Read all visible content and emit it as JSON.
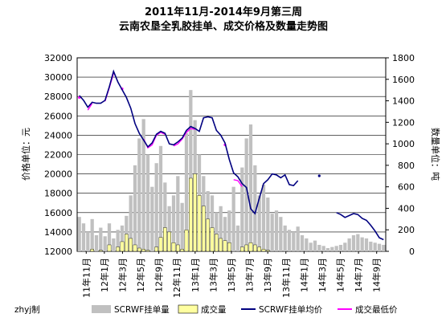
{
  "chart_data": {
    "type": "line",
    "title": "2011年11月-2014年9月第三周",
    "subtitle": "云南农垦全乳胶挂单、成交价格及数量走势图",
    "ylabel": "价格单位：元",
    "y2label": "数量单位：吨",
    "ylim": [
      12000,
      32000
    ],
    "y2lim": [
      0,
      1800
    ],
    "yticks": [
      "12000",
      "14000",
      "16000",
      "18000",
      "20000",
      "22000",
      "24000",
      "26000",
      "28000",
      "30000",
      "32000"
    ],
    "y2ticks": [
      "0",
      "200",
      "400",
      "600",
      "800",
      "1000",
      "1200",
      "1400",
      "1600",
      "1800"
    ],
    "x_tick_labels": [
      "11年11月",
      "12年1月",
      "12年3月",
      "12年5月",
      "12年9月",
      "12年11月",
      "13年1月",
      "13年3月",
      "13年5月",
      "13年7月",
      "13年9月",
      "13年11月",
      "14年1月",
      "14年3月",
      "14年5月",
      "14年7月",
      "14年9月"
    ],
    "grid": true,
    "legend_position": "bottom",
    "footer_note": "zhyj制",
    "series": [
      {
        "name": "SCRWF挂单量",
        "axis": "right",
        "kind": "bar",
        "color": "#c0c0c0",
        "values": [
          320,
          260,
          180,
          300,
          150,
          220,
          140,
          260,
          120,
          200,
          240,
          330,
          520,
          800,
          1050,
          1230,
          900,
          600,
          820,
          980,
          640,
          420,
          520,
          700,
          450,
          1100,
          1500,
          1220,
          900,
          700,
          560,
          520,
          360,
          420,
          320,
          380,
          600,
          240,
          780,
          1050,
          1180,
          800,
          520,
          620,
          500,
          350,
          380,
          320,
          240,
          200,
          180,
          230,
          150,
          120,
          80,
          100,
          60,
          50,
          30,
          40,
          50,
          60,
          80,
          120,
          150,
          160,
          130,
          120,
          90,
          80,
          70,
          60
        ]
      },
      {
        "name": "成交量",
        "axis": "right",
        "kind": "bar",
        "color": "#ffffa0",
        "values": [
          0,
          0,
          0,
          20,
          0,
          10,
          0,
          60,
          0,
          40,
          90,
          160,
          120,
          60,
          30,
          20,
          10,
          0,
          40,
          130,
          220,
          180,
          80,
          60,
          20,
          200,
          680,
          720,
          520,
          420,
          300,
          220,
          160,
          120,
          100,
          80,
          0,
          0,
          40,
          60,
          80,
          60,
          40,
          20,
          10,
          0,
          0,
          0,
          0,
          0,
          0,
          0,
          0,
          0,
          0,
          0,
          0,
          0,
          0,
          0,
          0,
          0,
          0,
          0,
          0,
          0,
          0,
          0,
          0,
          0,
          0,
          0
        ]
      },
      {
        "name": "SCRWF挂单均价",
        "axis": "left",
        "kind": "line",
        "color": "#000080",
        "values": [
          28100,
          27600,
          26900,
          27400,
          27300,
          27300,
          27600,
          29000,
          30600,
          29500,
          28700,
          27900,
          26800,
          25200,
          24200,
          23500,
          22800,
          23200,
          24100,
          24400,
          24200,
          23100,
          23000,
          23300,
          23700,
          24500,
          24900,
          24700,
          24400,
          25800,
          25900,
          25800,
          24500,
          24000,
          23200,
          21500,
          20100,
          19700,
          19000,
          18600,
          16400,
          15900,
          17500,
          19000,
          19400,
          20000,
          19900,
          19600,
          19900,
          18900,
          18800,
          19300,
          null,
          null,
          null,
          null,
          19800,
          null,
          null,
          null,
          16000,
          15800,
          15500,
          15700,
          15900,
          15800,
          15400,
          15200,
          14700,
          14100,
          13400,
          13200
        ]
      },
      {
        "name": "成交最低价",
        "axis": "left",
        "kind": "line",
        "color": "#ff00ff",
        "values": [
          27900,
          null,
          26600,
          27300,
          null,
          null,
          27500,
          28900,
          30400,
          null,
          28800,
          null,
          null,
          null,
          null,
          23600,
          22700,
          23000,
          24000,
          24300,
          24100,
          null,
          22900,
          23100,
          23600,
          24300,
          24700,
          24600,
          null,
          null,
          null,
          null,
          null,
          null,
          23000,
          null,
          19400,
          19300,
          18700,
          null,
          null,
          null,
          null,
          null,
          null,
          null,
          null,
          null,
          null,
          null,
          null,
          null,
          null,
          null,
          null,
          null,
          null,
          null,
          null,
          null,
          null,
          null,
          null,
          null,
          null,
          null,
          null,
          null,
          null,
          null,
          null,
          null
        ]
      }
    ]
  }
}
